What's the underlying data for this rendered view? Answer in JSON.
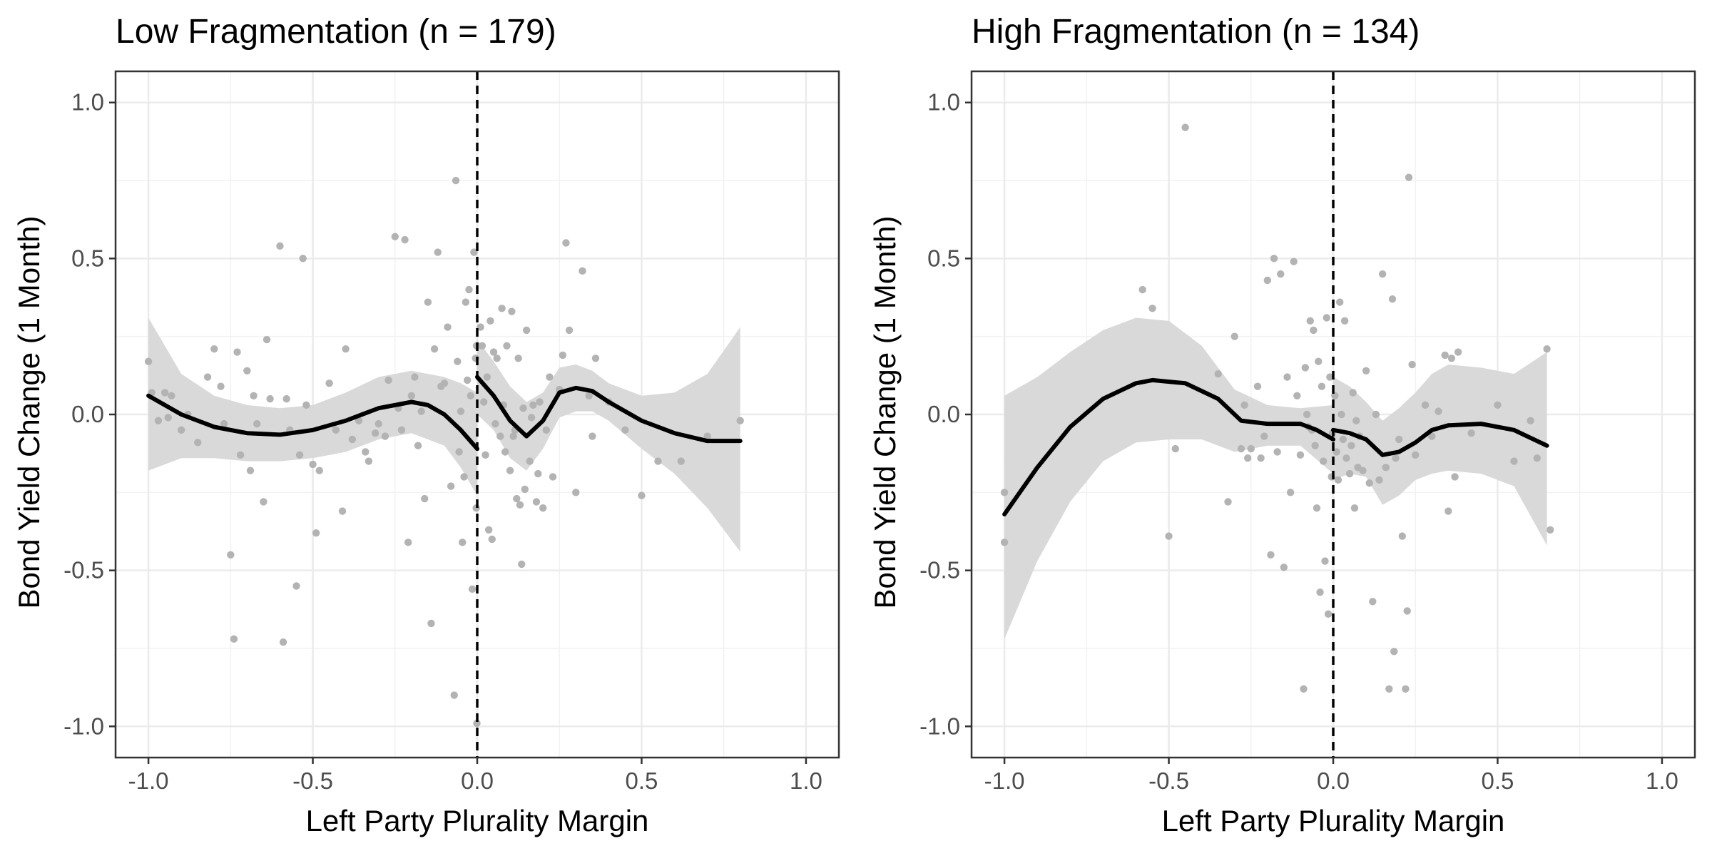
{
  "chart_data": [
    {
      "type": "scatter",
      "title": "Low Fragmentation (n = 179)",
      "xlabel": "Left Party Plurality Margin",
      "ylabel": "Bond Yield Change (1 Month)",
      "xlim": [
        -1.1,
        1.1
      ],
      "ylim": [
        -1.1,
        1.1
      ],
      "x_ticks": [
        "-1.0",
        "-0.5",
        "0.0",
        "0.5",
        "1.0"
      ],
      "y_ticks": [
        "1.0",
        "0.5",
        "0.0",
        "-0.5",
        "-1.0"
      ],
      "cutoff": 0,
      "grid": true,
      "colors": {
        "points": "#b3b3b3",
        "band": "#d9d9d9",
        "line": "#000000"
      },
      "points": [
        [
          -1.0,
          0.17
        ],
        [
          -0.99,
          0.07
        ],
        [
          -0.97,
          -0.02
        ],
        [
          -0.95,
          0.07
        ],
        [
          -0.94,
          -0.01
        ],
        [
          -0.93,
          0.06
        ],
        [
          -0.9,
          -0.05
        ],
        [
          -0.88,
          0.0
        ],
        [
          -0.85,
          -0.09
        ],
        [
          -0.82,
          0.12
        ],
        [
          -0.8,
          0.21
        ],
        [
          -0.78,
          0.09
        ],
        [
          -0.77,
          -0.03
        ],
        [
          -0.75,
          -0.45
        ],
        [
          -0.74,
          -0.72
        ],
        [
          -0.73,
          0.2
        ],
        [
          -0.72,
          -0.13
        ],
        [
          -0.7,
          0.14
        ],
        [
          -0.69,
          -0.18
        ],
        [
          -0.68,
          0.06
        ],
        [
          -0.67,
          -0.03
        ],
        [
          -0.65,
          -0.28
        ],
        [
          -0.64,
          0.24
        ],
        [
          -0.63,
          0.05
        ],
        [
          -0.6,
          0.54
        ],
        [
          -0.59,
          -0.73
        ],
        [
          -0.58,
          0.05
        ],
        [
          -0.57,
          -0.05
        ],
        [
          -0.55,
          -0.55
        ],
        [
          -0.54,
          -0.13
        ],
        [
          -0.53,
          0.5
        ],
        [
          -0.52,
          0.03
        ],
        [
          -0.5,
          -0.16
        ],
        [
          -0.49,
          -0.38
        ],
        [
          -0.48,
          -0.18
        ],
        [
          -0.45,
          0.1
        ],
        [
          -0.43,
          -0.05
        ],
        [
          -0.41,
          -0.31
        ],
        [
          -0.4,
          0.21
        ],
        [
          -0.38,
          -0.08
        ],
        [
          -0.36,
          -0.02
        ],
        [
          -0.34,
          -0.12
        ],
        [
          -0.33,
          -0.15
        ],
        [
          -0.31,
          -0.06
        ],
        [
          -0.3,
          -0.03
        ],
        [
          -0.28,
          -0.07
        ],
        [
          -0.27,
          0.11
        ],
        [
          -0.25,
          0.57
        ],
        [
          -0.24,
          0.02
        ],
        [
          -0.23,
          -0.05
        ],
        [
          -0.22,
          0.56
        ],
        [
          -0.21,
          -0.41
        ],
        [
          -0.2,
          0.06
        ],
        [
          -0.19,
          0.12
        ],
        [
          -0.18,
          -0.1
        ],
        [
          -0.17,
          0.01
        ],
        [
          -0.16,
          -0.27
        ],
        [
          -0.15,
          0.36
        ],
        [
          -0.14,
          -0.67
        ],
        [
          -0.13,
          0.21
        ],
        [
          -0.12,
          0.52
        ],
        [
          -0.11,
          0.09
        ],
        [
          -0.1,
          0.1
        ],
        [
          -0.09,
          0.28
        ],
        [
          -0.08,
          -0.23
        ],
        [
          -0.07,
          -0.9
        ],
        [
          -0.065,
          0.75
        ],
        [
          -0.06,
          0.17
        ],
        [
          -0.055,
          -0.12
        ],
        [
          -0.05,
          0.01
        ],
        [
          -0.045,
          -0.41
        ],
        [
          -0.04,
          -0.2
        ],
        [
          -0.035,
          0.36
        ],
        [
          -0.03,
          0.11
        ],
        [
          -0.025,
          0.4
        ],
        [
          -0.02,
          0.06
        ],
        [
          -0.015,
          -0.56
        ],
        [
          -0.01,
          0.52
        ],
        [
          -0.005,
          0.18
        ],
        [
          -0.003,
          -0.3
        ],
        [
          -0.002,
          0.22
        ],
        [
          -0.001,
          -0.99
        ],
        [
          0.01,
          0.28
        ],
        [
          0.015,
          0.22
        ],
        [
          0.02,
          0.04
        ],
        [
          0.025,
          -0.13
        ],
        [
          0.03,
          0.12
        ],
        [
          0.035,
          -0.37
        ],
        [
          0.04,
          0.3
        ],
        [
          0.045,
          -0.4
        ],
        [
          0.05,
          0.2
        ],
        [
          0.055,
          -0.03
        ],
        [
          0.06,
          0.18
        ],
        [
          0.07,
          -0.07
        ],
        [
          0.075,
          0.34
        ],
        [
          0.08,
          0.03
        ],
        [
          0.085,
          -0.12
        ],
        [
          0.09,
          0.22
        ],
        [
          0.1,
          -0.18
        ],
        [
          0.105,
          0.33
        ],
        [
          0.11,
          -0.07
        ],
        [
          0.115,
          -0.05
        ],
        [
          0.12,
          -0.27
        ],
        [
          0.125,
          0.18
        ],
        [
          0.13,
          -0.29
        ],
        [
          0.135,
          -0.48
        ],
        [
          0.14,
          0.02
        ],
        [
          0.145,
          -0.24
        ],
        [
          0.15,
          0.27
        ],
        [
          0.16,
          -0.15
        ],
        [
          0.165,
          -0.01
        ],
        [
          0.17,
          0.03
        ],
        [
          0.18,
          -0.28
        ],
        [
          0.185,
          -0.19
        ],
        [
          0.19,
          0.04
        ],
        [
          0.2,
          -0.3
        ],
        [
          0.21,
          -0.05
        ],
        [
          0.22,
          0.12
        ],
        [
          0.23,
          -0.2
        ],
        [
          0.25,
          0.08
        ],
        [
          0.26,
          0.19
        ],
        [
          0.27,
          0.55
        ],
        [
          0.28,
          0.27
        ],
        [
          0.3,
          -0.25
        ],
        [
          0.32,
          0.46
        ],
        [
          0.34,
          0.06
        ],
        [
          0.35,
          -0.07
        ],
        [
          0.36,
          0.18
        ],
        [
          0.4,
          0.04
        ],
        [
          0.45,
          -0.05
        ],
        [
          0.5,
          -0.26
        ],
        [
          0.55,
          -0.15
        ],
        [
          0.62,
          -0.15
        ],
        [
          0.7,
          -0.07
        ],
        [
          0.8,
          -0.02
        ]
      ],
      "fit_left": [
        [
          -1.0,
          0.06
        ],
        [
          -0.9,
          0.0
        ],
        [
          -0.8,
          -0.04
        ],
        [
          -0.7,
          -0.06
        ],
        [
          -0.6,
          -0.065
        ],
        [
          -0.5,
          -0.05
        ],
        [
          -0.4,
          -0.02
        ],
        [
          -0.3,
          0.02
        ],
        [
          -0.2,
          0.04
        ],
        [
          -0.15,
          0.03
        ],
        [
          -0.1,
          0.0
        ],
        [
          -0.05,
          -0.05
        ],
        [
          0.0,
          -0.11
        ]
      ],
      "fit_right": [
        [
          0.0,
          0.12
        ],
        [
          0.05,
          0.06
        ],
        [
          0.1,
          -0.02
        ],
        [
          0.15,
          -0.07
        ],
        [
          0.2,
          -0.02
        ],
        [
          0.25,
          0.07
        ],
        [
          0.3,
          0.085
        ],
        [
          0.35,
          0.075
        ],
        [
          0.4,
          0.04
        ],
        [
          0.5,
          -0.02
        ],
        [
          0.6,
          -0.06
        ],
        [
          0.7,
          -0.085
        ],
        [
          0.8,
          -0.085
        ]
      ],
      "band_left": [
        [
          -1.0,
          0.31,
          -0.18
        ],
        [
          -0.9,
          0.13,
          -0.14
        ],
        [
          -0.8,
          0.06,
          -0.14
        ],
        [
          -0.7,
          0.03,
          -0.15
        ],
        [
          -0.6,
          0.02,
          -0.15
        ],
        [
          -0.5,
          0.03,
          -0.14
        ],
        [
          -0.4,
          0.07,
          -0.12
        ],
        [
          -0.3,
          0.12,
          -0.08
        ],
        [
          -0.2,
          0.14,
          -0.06
        ],
        [
          -0.1,
          0.12,
          -0.1
        ],
        [
          -0.05,
          0.1,
          -0.17
        ],
        [
          0.0,
          0.07,
          -0.26
        ]
      ],
      "band_right": [
        [
          0.0,
          0.24,
          0.0
        ],
        [
          0.05,
          0.17,
          -0.05
        ],
        [
          0.1,
          0.09,
          -0.14
        ],
        [
          0.15,
          0.04,
          -0.18
        ],
        [
          0.2,
          0.07,
          -0.11
        ],
        [
          0.25,
          0.15,
          -0.01
        ],
        [
          0.3,
          0.16,
          0.01
        ],
        [
          0.35,
          0.14,
          0.01
        ],
        [
          0.4,
          0.1,
          -0.02
        ],
        [
          0.5,
          0.06,
          -0.11
        ],
        [
          0.6,
          0.07,
          -0.19
        ],
        [
          0.7,
          0.13,
          -0.3
        ],
        [
          0.8,
          0.28,
          -0.44
        ]
      ]
    },
    {
      "type": "scatter",
      "title": "High Fragmentation (n = 134)",
      "xlabel": "Left Party Plurality Margin",
      "ylabel": "Bond Yield Change (1 Month)",
      "xlim": [
        -1.1,
        1.1
      ],
      "ylim": [
        -1.1,
        1.1
      ],
      "x_ticks": [
        "-1.0",
        "-0.5",
        "0.0",
        "0.5",
        "1.0"
      ],
      "y_ticks": [
        "1.0",
        "0.5",
        "0.0",
        "-0.5",
        "-1.0"
      ],
      "cutoff": 0,
      "grid": true,
      "colors": {
        "points": "#b3b3b3",
        "band": "#d9d9d9",
        "line": "#000000"
      },
      "points": [
        [
          -1.0,
          -0.25
        ],
        [
          -1.0,
          -0.41
        ],
        [
          -0.58,
          0.4
        ],
        [
          -0.55,
          0.34
        ],
        [
          -0.5,
          -0.39
        ],
        [
          -0.48,
          -0.11
        ],
        [
          -0.45,
          0.92
        ],
        [
          -0.35,
          0.13
        ],
        [
          -0.32,
          -0.28
        ],
        [
          -0.3,
          0.25
        ],
        [
          -0.28,
          -0.11
        ],
        [
          -0.27,
          0.03
        ],
        [
          -0.26,
          -0.14
        ],
        [
          -0.25,
          -0.11
        ],
        [
          -0.23,
          0.09
        ],
        [
          -0.22,
          -0.14
        ],
        [
          -0.21,
          -0.07
        ],
        [
          -0.2,
          0.43
        ],
        [
          -0.19,
          -0.45
        ],
        [
          -0.18,
          0.5
        ],
        [
          -0.17,
          -0.12
        ],
        [
          -0.16,
          0.45
        ],
        [
          -0.15,
          -0.49
        ],
        [
          -0.14,
          0.12
        ],
        [
          -0.13,
          -0.25
        ],
        [
          -0.12,
          0.49
        ],
        [
          -0.11,
          0.06
        ],
        [
          -0.1,
          -0.13
        ],
        [
          -0.09,
          -0.88
        ],
        [
          -0.085,
          0.15
        ],
        [
          -0.08,
          0.0
        ],
        [
          -0.075,
          -0.04
        ],
        [
          -0.07,
          0.3
        ],
        [
          -0.065,
          -0.05
        ],
        [
          -0.06,
          0.27
        ],
        [
          -0.055,
          -0.1
        ],
        [
          -0.05,
          -0.3
        ],
        [
          -0.045,
          0.17
        ],
        [
          -0.04,
          -0.57
        ],
        [
          -0.035,
          0.09
        ],
        [
          -0.03,
          -0.15
        ],
        [
          -0.025,
          -0.47
        ],
        [
          -0.02,
          0.31
        ],
        [
          -0.015,
          -0.64
        ],
        [
          -0.01,
          0.12
        ],
        [
          -0.005,
          -0.2
        ],
        [
          -0.002,
          -0.06
        ],
        [
          0.005,
          0.06
        ],
        [
          0.01,
          -0.12
        ],
        [
          0.015,
          -0.21
        ],
        [
          0.02,
          0.36
        ],
        [
          0.025,
          0.0
        ],
        [
          0.03,
          -0.08
        ],
        [
          0.035,
          0.3
        ],
        [
          0.04,
          -0.14
        ],
        [
          0.05,
          -0.19
        ],
        [
          0.055,
          -0.1
        ],
        [
          0.06,
          0.07
        ],
        [
          0.065,
          -0.3
        ],
        [
          0.07,
          -0.02
        ],
        [
          0.075,
          -0.17
        ],
        [
          0.08,
          -0.07
        ],
        [
          0.09,
          -0.18
        ],
        [
          0.1,
          0.14
        ],
        [
          0.11,
          -0.22
        ],
        [
          0.12,
          -0.6
        ],
        [
          0.13,
          0.0
        ],
        [
          0.14,
          -0.21
        ],
        [
          0.15,
          0.45
        ],
        [
          0.16,
          -0.17
        ],
        [
          0.17,
          -0.88
        ],
        [
          0.18,
          0.37
        ],
        [
          0.185,
          -0.76
        ],
        [
          0.19,
          -0.14
        ],
        [
          0.2,
          -0.08
        ],
        [
          0.21,
          -0.39
        ],
        [
          0.22,
          -0.88
        ],
        [
          0.225,
          -0.63
        ],
        [
          0.23,
          0.76
        ],
        [
          0.24,
          0.16
        ],
        [
          0.25,
          -0.13
        ],
        [
          0.28,
          0.03
        ],
        [
          0.3,
          -0.07
        ],
        [
          0.32,
          0.01
        ],
        [
          0.34,
          0.19
        ],
        [
          0.35,
          -0.31
        ],
        [
          0.36,
          0.18
        ],
        [
          0.37,
          -0.2
        ],
        [
          0.38,
          0.2
        ],
        [
          0.42,
          -0.06
        ],
        [
          0.5,
          0.03
        ],
        [
          0.55,
          -0.15
        ],
        [
          0.6,
          -0.02
        ],
        [
          0.62,
          -0.14
        ],
        [
          0.65,
          0.21
        ],
        [
          0.66,
          -0.37
        ]
      ],
      "fit_left": [
        [
          -1.0,
          -0.32
        ],
        [
          -0.9,
          -0.17
        ],
        [
          -0.8,
          -0.04
        ],
        [
          -0.7,
          0.05
        ],
        [
          -0.6,
          0.1
        ],
        [
          -0.55,
          0.11
        ],
        [
          -0.45,
          0.1
        ],
        [
          -0.35,
          0.05
        ],
        [
          -0.28,
          -0.02
        ],
        [
          -0.2,
          -0.03
        ],
        [
          -0.1,
          -0.03
        ],
        [
          -0.05,
          -0.05
        ],
        [
          0.0,
          -0.08
        ]
      ],
      "fit_right": [
        [
          0.0,
          -0.05
        ],
        [
          0.05,
          -0.06
        ],
        [
          0.1,
          -0.08
        ],
        [
          0.15,
          -0.13
        ],
        [
          0.2,
          -0.12
        ],
        [
          0.25,
          -0.09
        ],
        [
          0.3,
          -0.05
        ],
        [
          0.35,
          -0.035
        ],
        [
          0.45,
          -0.03
        ],
        [
          0.55,
          -0.05
        ],
        [
          0.65,
          -0.1
        ]
      ],
      "band_left": [
        [
          -1.0,
          0.06,
          -0.72
        ],
        [
          -0.9,
          0.12,
          -0.47
        ],
        [
          -0.8,
          0.2,
          -0.28
        ],
        [
          -0.7,
          0.27,
          -0.15
        ],
        [
          -0.6,
          0.31,
          -0.09
        ],
        [
          -0.5,
          0.3,
          -0.08
        ],
        [
          -0.4,
          0.22,
          -0.08
        ],
        [
          -0.3,
          0.08,
          -0.12
        ],
        [
          -0.2,
          0.03,
          -0.1
        ],
        [
          -0.1,
          0.02,
          -0.1
        ],
        [
          0.0,
          0.03,
          -0.19
        ]
      ],
      "band_right": [
        [
          0.0,
          0.12,
          -0.21
        ],
        [
          0.05,
          0.09,
          -0.19
        ],
        [
          0.1,
          0.04,
          -0.2
        ],
        [
          0.15,
          -0.02,
          -0.29
        ],
        [
          0.2,
          0.02,
          -0.26
        ],
        [
          0.25,
          0.07,
          -0.21
        ],
        [
          0.3,
          0.13,
          -0.19
        ],
        [
          0.35,
          0.16,
          -0.18
        ],
        [
          0.45,
          0.15,
          -0.19
        ],
        [
          0.55,
          0.13,
          -0.23
        ],
        [
          0.65,
          0.2,
          -0.42
        ]
      ]
    }
  ]
}
